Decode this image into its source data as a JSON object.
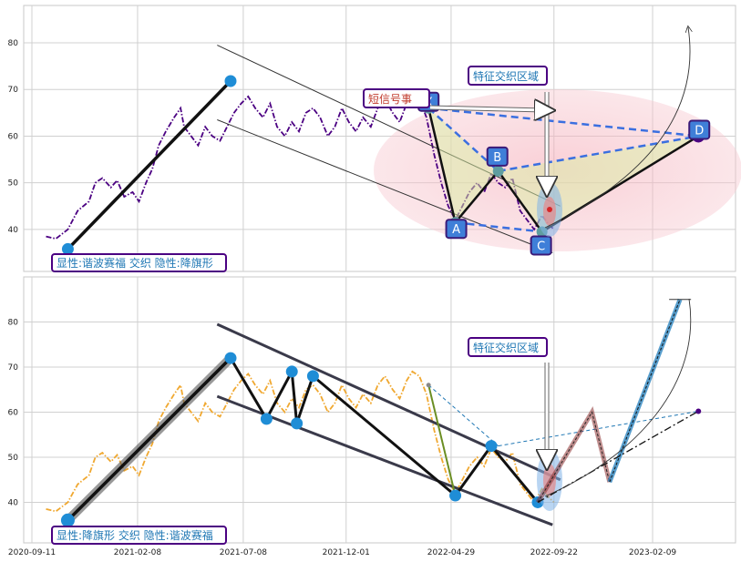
{
  "chart_data": [
    {
      "type": "line",
      "panel": "top",
      "ylim": [
        31,
        88
      ],
      "yticks": [
        40,
        50,
        60,
        70,
        80
      ],
      "grid": true,
      "price_color": "#4b0082",
      "price_style": "dash-dot",
      "price_series": [
        [
          "2020-10-01",
          38.5
        ],
        [
          "2020-10-15",
          38.0
        ],
        [
          "2020-11-01",
          40.0
        ],
        [
          "2020-11-15",
          44.0
        ],
        [
          "2020-12-01",
          46.0
        ],
        [
          "2020-12-10",
          50.0
        ],
        [
          "2020-12-20",
          51.0
        ],
        [
          "2021-01-01",
          49.0
        ],
        [
          "2021-01-10",
          50.5
        ],
        [
          "2021-01-20",
          47.0
        ],
        [
          "2021-02-01",
          48.0
        ],
        [
          "2021-02-10",
          46.0
        ],
        [
          "2021-02-20",
          50.0
        ],
        [
          "2021-03-01",
          53.0
        ],
        [
          "2021-03-10",
          58.0
        ],
        [
          "2021-03-20",
          61.0
        ],
        [
          "2021-04-01",
          64.0
        ],
        [
          "2021-04-10",
          66.0
        ],
        [
          "2021-04-15",
          62.0
        ],
        [
          "2021-04-25",
          60.0
        ],
        [
          "2021-05-05",
          58.0
        ],
        [
          "2021-05-15",
          62.0
        ],
        [
          "2021-05-25",
          60.0
        ],
        [
          "2021-06-05",
          59.0
        ],
        [
          "2021-06-15",
          62.0
        ],
        [
          "2021-06-25",
          65.0
        ],
        [
          "2021-07-05",
          67.0
        ],
        [
          "2021-07-15",
          68.5
        ],
        [
          "2021-07-25",
          66.0
        ],
        [
          "2021-08-05",
          64.0
        ],
        [
          "2021-08-15",
          67.0
        ],
        [
          "2021-08-25",
          62.0
        ],
        [
          "2021-09-05",
          60.0
        ],
        [
          "2021-09-15",
          63.0
        ],
        [
          "2021-09-25",
          61.0
        ],
        [
          "2021-10-05",
          65.0
        ],
        [
          "2021-10-15",
          66.0
        ],
        [
          "2021-10-25",
          64.0
        ],
        [
          "2021-11-05",
          60.0
        ],
        [
          "2021-11-15",
          62.0
        ],
        [
          "2021-11-25",
          66.0
        ],
        [
          "2021-12-05",
          63.0
        ],
        [
          "2021-12-15",
          61.0
        ],
        [
          "2021-12-25",
          64.0
        ],
        [
          "2022-01-05",
          62.0
        ],
        [
          "2022-01-15",
          66.0
        ],
        [
          "2022-01-25",
          68.0
        ],
        [
          "2022-02-05",
          65.0
        ],
        [
          "2022-02-15",
          63.0
        ],
        [
          "2022-02-25",
          67.0
        ],
        [
          "2022-03-05",
          69.0
        ],
        [
          "2022-03-15",
          68.0
        ],
        [
          "2022-03-25",
          64.0
        ],
        [
          "2022-04-05",
          56.0
        ],
        [
          "2022-04-15",
          50.0
        ],
        [
          "2022-04-25",
          45.0
        ],
        [
          "2022-05-05",
          42.0
        ],
        [
          "2022-05-15",
          45.0
        ],
        [
          "2022-05-25",
          48.0
        ],
        [
          "2022-06-05",
          50.0
        ],
        [
          "2022-06-15",
          48.0
        ],
        [
          "2022-06-25",
          52.0
        ],
        [
          "2022-07-05",
          50.0
        ],
        [
          "2022-07-15",
          49.0
        ],
        [
          "2022-07-25",
          51.0
        ],
        [
          "2022-08-05",
          44.0
        ],
        [
          "2022-08-15",
          42.0
        ],
        [
          "2022-08-25",
          40.0
        ],
        [
          "2022-09-05",
          43.0
        ],
        [
          "2022-09-15",
          41.0
        ],
        [
          "2022-09-22",
          40.0
        ]
      ],
      "pattern_points": {
        "X": [
          "2022-03-28",
          66.0
        ],
        "A": [
          "2022-05-05",
          41.5
        ],
        "B": [
          "2022-07-05",
          52.5
        ],
        "C": [
          "2022-09-05",
          39.5
        ],
        "D": [
          "2023-04-15",
          60.0
        ]
      },
      "flag_points": [
        [
          "2020-11-01",
          35.8
        ],
        [
          "2021-06-20",
          71.8
        ]
      ],
      "channel": [
        [
          [
            "2021-06-01",
            79.5
          ],
          [
            "2022-10-01",
            45.0
          ]
        ],
        [
          [
            "2021-06-01",
            63.5
          ],
          [
            "2022-09-20",
            35.0
          ]
        ]
      ],
      "annotations": {
        "label_bottom": "显性:谐波赛福 交织 隐性:降旗形",
        "label_zone": "特征交织区域",
        "label_signal": "短信号事",
        "letters": [
          "X",
          "A",
          "B",
          "C",
          "D"
        ]
      }
    },
    {
      "type": "line",
      "panel": "bottom",
      "ylim": [
        31,
        90
      ],
      "yticks": [
        40,
        50,
        60,
        70,
        80
      ],
      "grid": true,
      "price_color": "#f0a830",
      "price_style": "dash-dot",
      "flag_pole": [
        [
          "2020-11-01",
          36.0
        ],
        [
          "2021-06-20",
          72.0
        ]
      ],
      "flag_zigzag": [
        [
          "2021-06-20",
          72.0
        ],
        [
          "2021-08-10",
          58.5
        ],
        [
          "2021-09-15",
          69.0
        ],
        [
          "2021-09-22",
          57.5
        ],
        [
          "2021-10-15",
          68.0
        ],
        [
          "2022-05-05",
          41.5
        ],
        [
          "2022-06-25",
          52.5
        ],
        [
          "2022-08-30",
          40.0
        ]
      ],
      "channel": [
        [
          [
            "2021-06-01",
            79.5
          ],
          [
            "2022-10-01",
            45.0
          ]
        ],
        [
          [
            "2021-06-01",
            63.5
          ],
          [
            "2022-09-20",
            35.0
          ]
        ]
      ],
      "projection_red": [
        [
          "2022-08-30",
          40.0
        ],
        [
          "2022-11-15",
          60.0
        ],
        [
          "2022-12-10",
          44.5
        ]
      ],
      "projection_blue": [
        [
          "2022-12-10",
          44.5
        ],
        [
          "2023-03-20",
          85.0
        ]
      ],
      "target_point": [
        "2023-04-15",
        60.2
      ],
      "annotations": {
        "label_bottom": "显性:降旗形 交织 隐性:谐波赛福",
        "label_zone": "特征交织区域"
      }
    }
  ],
  "x_ticks": [
    "2020-09-11",
    "2021-02-08",
    "2021-07-08",
    "2021-12-01",
    "2022-04-29",
    "2022-09-22",
    "2023-02-09"
  ]
}
